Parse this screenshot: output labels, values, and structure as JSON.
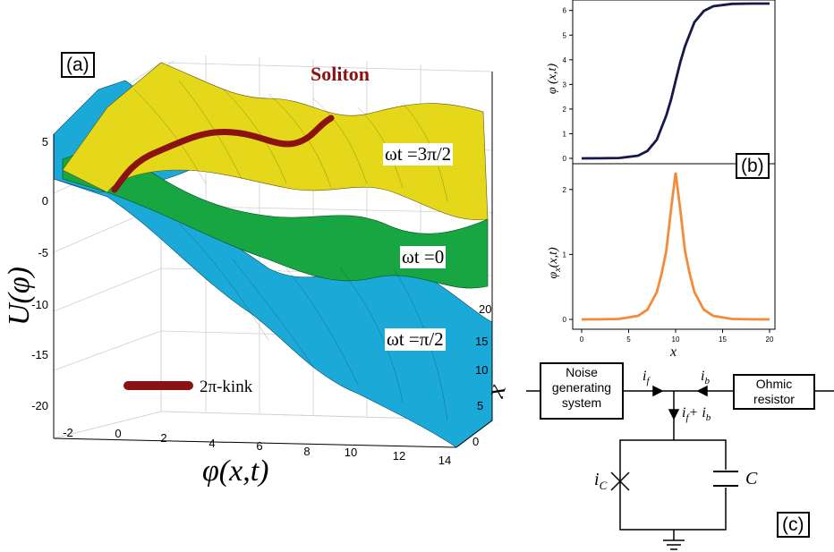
{
  "colors": {
    "yellow": "#e5d71a",
    "green": "#17a642",
    "blue": "#1ba9d8",
    "kink": "#8b1212",
    "navy": "#17184a",
    "orange": "#f28b3b"
  },
  "panel_a": {
    "label": "(a)",
    "soliton_title": "Soliton",
    "kink_legend": "2π-kink",
    "curves": [
      {
        "name": "ωt =3π/2"
      },
      {
        "name": "ωt =0"
      },
      {
        "name": "ωt =π/2"
      }
    ],
    "ylabel": "U(φ)",
    "xlabel": "φ(x,t)",
    "zlabel": "x"
  },
  "panel_b": {
    "label": "(b)"
  },
  "panel_c": {
    "label": "(c)",
    "noise_box": [
      "Noise",
      "generating",
      "system"
    ],
    "ohmic_box": [
      "Ohmic",
      "resistor"
    ],
    "i_f": "i",
    "i_f_sub": "f",
    "i_b": "i",
    "i_b_sub": "b",
    "sum_label": "i",
    "sum_sub1": "f",
    "sum_mid": "+ i",
    "sum_sub2": "b",
    "ic": "i",
    "ic_sub": "C",
    "cap": "C"
  },
  "chart_data": [
    {
      "type": "surface",
      "title": "Soliton",
      "xlabel": "φ(x,t)",
      "ylabel": "U(φ)",
      "zlabel": "x",
      "xticks": [
        -2,
        0,
        2,
        4,
        6,
        8,
        10,
        12,
        14
      ],
      "yticks": [
        5,
        0,
        -5,
        -10,
        -15,
        -20
      ],
      "zticks": [
        0,
        5,
        10,
        15,
        20
      ],
      "series": [
        {
          "name": "ωt =3π/2"
        },
        {
          "name": "ωt =0"
        },
        {
          "name": "ωt =π/2"
        }
      ],
      "legend": "2π-kink"
    },
    {
      "type": "line",
      "ylabel": "φ (x,t)",
      "xlim": [
        0,
        20
      ],
      "ylim": [
        0,
        6.28
      ],
      "yticks": [
        0,
        1,
        2,
        3,
        4,
        5,
        6
      ],
      "x": [
        0,
        2,
        4,
        6,
        7,
        8,
        9,
        9.5,
        10,
        10.5,
        11,
        12,
        13,
        14,
        16,
        18,
        20
      ],
      "values": [
        0.0003,
        0.002,
        0.015,
        0.11,
        0.3,
        0.76,
        1.73,
        2.37,
        3.14,
        3.91,
        4.55,
        5.52,
        5.98,
        6.17,
        6.27,
        6.28,
        6.28
      ]
    },
    {
      "type": "line",
      "xlabel": "x",
      "ylabel": "φ_x(x,t)",
      "xlim": [
        0,
        20
      ],
      "ylim": [
        0,
        2.3
      ],
      "xticks": [
        0,
        5,
        10,
        15,
        20
      ],
      "yticks": [
        0,
        1,
        2
      ],
      "x": [
        0,
        2,
        4,
        6,
        7,
        8,
        8.5,
        9,
        9.5,
        10,
        10.5,
        11,
        11.5,
        12,
        13,
        14,
        16,
        18,
        20
      ],
      "values": [
        0.0001,
        0.001,
        0.007,
        0.055,
        0.15,
        0.42,
        0.7,
        1.05,
        1.68,
        2.26,
        1.68,
        1.05,
        0.7,
        0.42,
        0.15,
        0.055,
        0.007,
        0.001,
        0.0001
      ]
    }
  ]
}
